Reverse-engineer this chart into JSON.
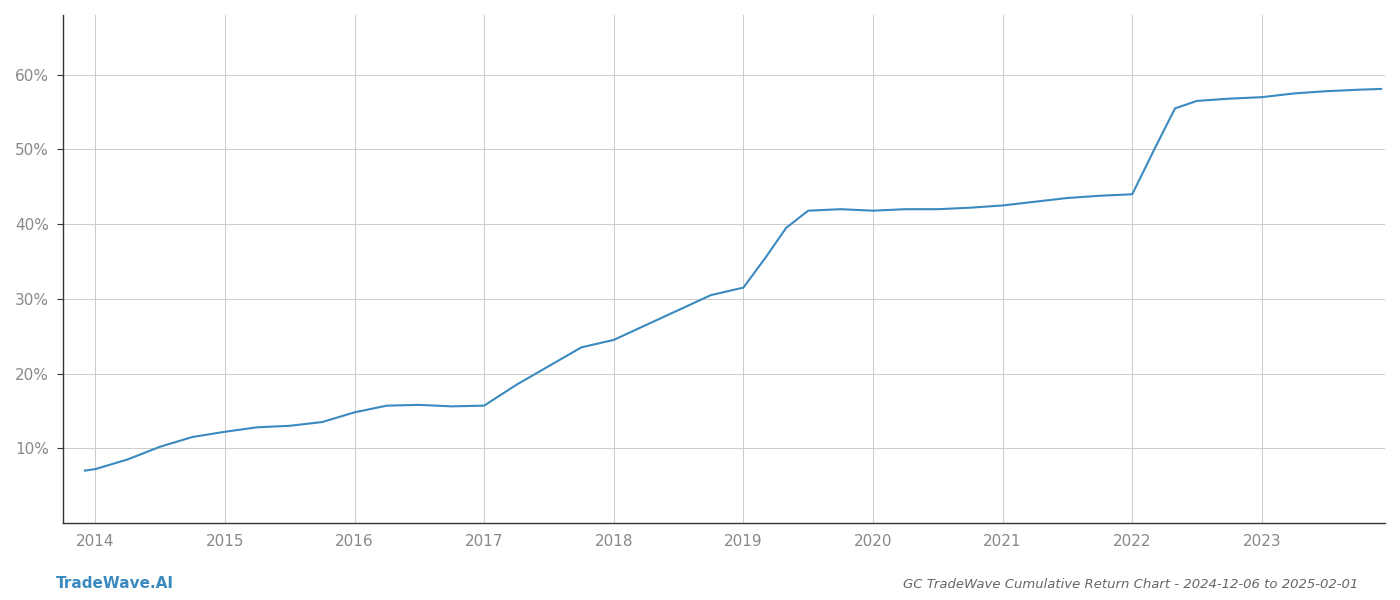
{
  "title": "GC TradeWave Cumulative Return Chart - 2024-12-06 to 2025-02-01",
  "watermark": "TradeWave.AI",
  "line_color": "#3a8abf",
  "line_width": 1.5,
  "background_color": "#ffffff",
  "grid_color": "#cccccc",
  "x_data": [
    2013.92,
    2014.0,
    2014.25,
    2014.5,
    2014.75,
    2015.0,
    2015.25,
    2015.5,
    2015.75,
    2016.0,
    2016.25,
    2016.5,
    2016.75,
    2017.0,
    2017.25,
    2017.5,
    2017.75,
    2018.0,
    2018.25,
    2018.5,
    2018.75,
    2019.0,
    2019.17,
    2019.33,
    2019.5,
    2019.75,
    2020.0,
    2020.25,
    2020.5,
    2020.75,
    2021.0,
    2021.25,
    2021.5,
    2021.75,
    2022.0,
    2022.17,
    2022.33,
    2022.5,
    2022.75,
    2023.0,
    2023.25,
    2023.5,
    2023.75,
    2023.92
  ],
  "y_data": [
    7.0,
    7.2,
    8.5,
    10.2,
    11.5,
    12.2,
    12.8,
    13.0,
    13.5,
    14.8,
    15.7,
    15.8,
    15.6,
    15.7,
    18.5,
    21.0,
    23.5,
    24.5,
    26.5,
    28.5,
    30.5,
    31.5,
    35.5,
    39.5,
    41.8,
    42.0,
    41.8,
    42.0,
    42.0,
    42.2,
    42.5,
    43.0,
    43.5,
    43.8,
    44.0,
    50.0,
    55.5,
    56.5,
    56.8,
    57.0,
    57.5,
    57.8,
    58.0,
    58.1
  ],
  "ylim": [
    0,
    68
  ],
  "xlim": [
    2013.75,
    2023.95
  ],
  "yticks": [
    10,
    20,
    30,
    40,
    50,
    60
  ],
  "ytick_labels": [
    "10%",
    "20%",
    "30%",
    "40%",
    "50%",
    "60%"
  ],
  "xtick_labels": [
    "2014",
    "2015",
    "2016",
    "2017",
    "2018",
    "2019",
    "2020",
    "2021",
    "2022",
    "2023"
  ],
  "xtick_positions": [
    2014,
    2015,
    2016,
    2017,
    2018,
    2019,
    2020,
    2021,
    2022,
    2023
  ],
  "title_fontsize": 9.5,
  "tick_fontsize": 11,
  "watermark_fontsize": 11,
  "tick_color": "#888888",
  "title_color": "#666666",
  "watermark_color": "#3a8abf",
  "spine_color": "#333333"
}
